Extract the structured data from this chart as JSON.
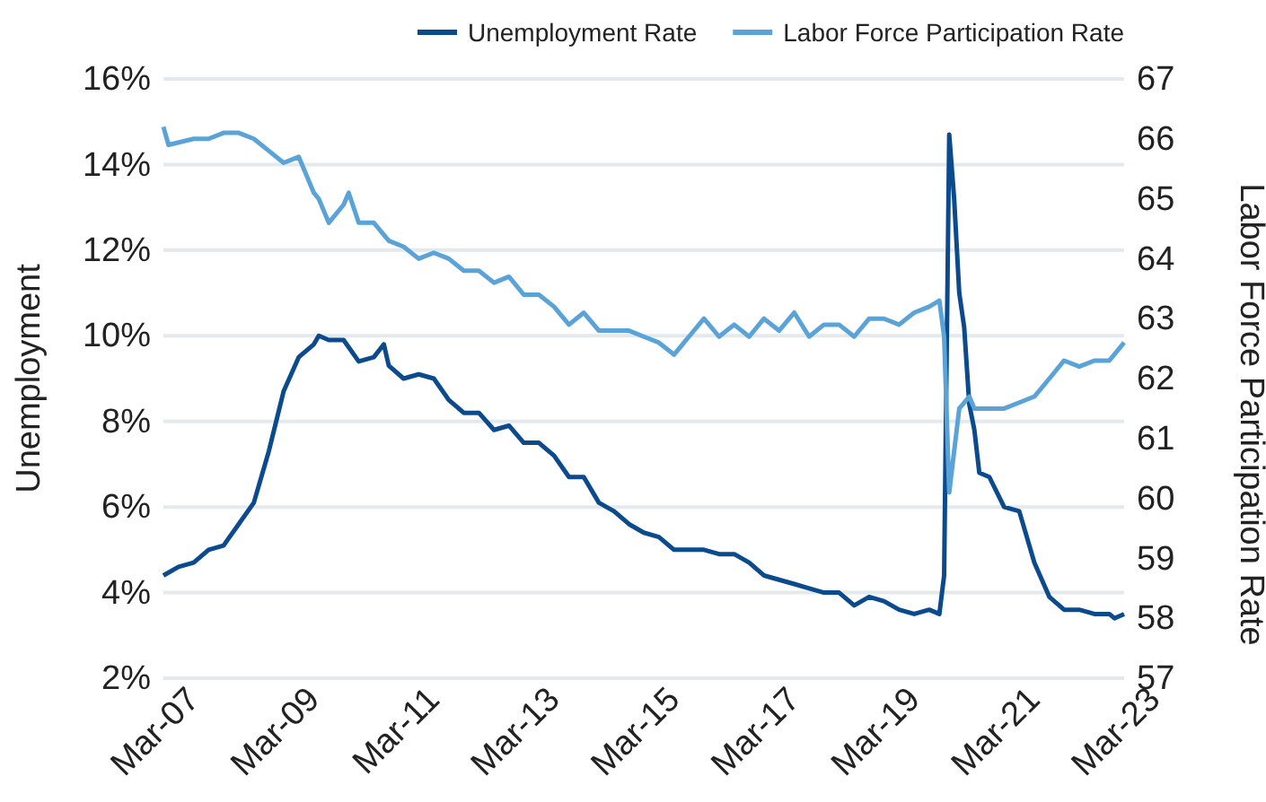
{
  "chart_data": {
    "type": "line",
    "ylabel": "Unemployment",
    "y2label": "Labor Force Participation Rate",
    "xlim": [
      "2007-03",
      "2023-03"
    ],
    "xticks": [
      {
        "value": "2007-03",
        "label": "Mar-07"
      },
      {
        "value": "2009-03",
        "label": "Mar-09"
      },
      {
        "value": "2011-03",
        "label": "Mar-11"
      },
      {
        "value": "2013-03",
        "label": "Mar-13"
      },
      {
        "value": "2015-03",
        "label": "Mar-15"
      },
      {
        "value": "2017-03",
        "label": "Mar-17"
      },
      {
        "value": "2019-03",
        "label": "Mar-19"
      },
      {
        "value": "2021-03",
        "label": "Mar-21"
      },
      {
        "value": "2023-03",
        "label": "Mar-23"
      }
    ],
    "ylim": [
      2,
      16
    ],
    "yticks": [
      {
        "value": 2,
        "label": "2%"
      },
      {
        "value": 4,
        "label": "4%"
      },
      {
        "value": 6,
        "label": "6%"
      },
      {
        "value": 8,
        "label": "8%"
      },
      {
        "value": 10,
        "label": "10%"
      },
      {
        "value": 12,
        "label": "12%"
      },
      {
        "value": 14,
        "label": "14%"
      },
      {
        "value": 16,
        "label": "16%"
      }
    ],
    "y2lim": [
      57,
      67
    ],
    "y2ticks": [
      57,
      58,
      59,
      60,
      61,
      62,
      63,
      64,
      65,
      66,
      67
    ],
    "grid": "y",
    "legend": "top right",
    "marker": "none",
    "line_style": "solid",
    "series": [
      {
        "name": "Unemployment Rate",
        "color": "#0b4a8c",
        "axis": "y",
        "x": [
          "2007-03",
          "2007-06",
          "2007-09",
          "2007-12",
          "2008-03",
          "2008-06",
          "2008-09",
          "2008-12",
          "2009-03",
          "2009-06",
          "2009-09",
          "2009-10",
          "2009-12",
          "2010-03",
          "2010-06",
          "2010-09",
          "2010-11",
          "2010-12",
          "2011-03",
          "2011-06",
          "2011-09",
          "2011-12",
          "2012-03",
          "2012-06",
          "2012-09",
          "2012-12",
          "2013-03",
          "2013-06",
          "2013-09",
          "2013-12",
          "2014-03",
          "2014-06",
          "2014-09",
          "2014-12",
          "2015-03",
          "2015-06",
          "2015-09",
          "2015-12",
          "2016-03",
          "2016-06",
          "2016-09",
          "2016-12",
          "2017-03",
          "2017-06",
          "2017-09",
          "2017-12",
          "2018-03",
          "2018-06",
          "2018-09",
          "2018-12",
          "2019-03",
          "2019-06",
          "2019-09",
          "2019-12",
          "2020-02",
          "2020-03",
          "2020-04",
          "2020-05",
          "2020-06",
          "2020-07",
          "2020-08",
          "2020-09",
          "2020-10",
          "2020-12",
          "2021-03",
          "2021-06",
          "2021-09",
          "2021-12",
          "2022-03",
          "2022-06",
          "2022-09",
          "2022-12",
          "2023-01",
          "2023-03"
        ],
        "values": [
          4.4,
          4.6,
          4.7,
          5.0,
          5.1,
          5.6,
          6.1,
          7.3,
          8.7,
          9.5,
          9.8,
          10.0,
          9.9,
          9.9,
          9.4,
          9.5,
          9.8,
          9.3,
          9.0,
          9.1,
          9.0,
          8.5,
          8.2,
          8.2,
          7.8,
          7.9,
          7.5,
          7.5,
          7.2,
          6.7,
          6.7,
          6.1,
          5.9,
          5.6,
          5.4,
          5.3,
          5.0,
          5.0,
          5.0,
          4.9,
          4.9,
          4.7,
          4.4,
          4.3,
          4.2,
          4.1,
          4.0,
          4.0,
          3.7,
          3.9,
          3.8,
          3.6,
          3.5,
          3.6,
          3.5,
          4.4,
          14.7,
          13.2,
          11.0,
          10.2,
          8.4,
          7.8,
          6.8,
          6.7,
          6.0,
          5.9,
          4.7,
          3.9,
          3.6,
          3.6,
          3.5,
          3.5,
          3.4,
          3.5
        ]
      },
      {
        "name": "Labor Force Participation Rate",
        "color": "#5aa3d8",
        "axis": "y2",
        "x": [
          "2007-03",
          "2007-04",
          "2007-09",
          "2007-12",
          "2008-03",
          "2008-06",
          "2008-09",
          "2008-12",
          "2009-03",
          "2009-06",
          "2009-09",
          "2009-10",
          "2009-12",
          "2010-03",
          "2010-04",
          "2010-06",
          "2010-09",
          "2010-12",
          "2011-03",
          "2011-06",
          "2011-09",
          "2011-12",
          "2012-03",
          "2012-06",
          "2012-09",
          "2012-12",
          "2013-03",
          "2013-06",
          "2013-09",
          "2013-12",
          "2014-03",
          "2014-06",
          "2014-09",
          "2014-12",
          "2015-03",
          "2015-06",
          "2015-09",
          "2015-12",
          "2016-03",
          "2016-06",
          "2016-09",
          "2016-12",
          "2017-03",
          "2017-06",
          "2017-09",
          "2017-12",
          "2018-03",
          "2018-06",
          "2018-09",
          "2018-12",
          "2019-03",
          "2019-06",
          "2019-09",
          "2019-12",
          "2020-02",
          "2020-03",
          "2020-04",
          "2020-06",
          "2020-08",
          "2020-09",
          "2020-12",
          "2021-03",
          "2021-06",
          "2021-09",
          "2021-12",
          "2022-03",
          "2022-06",
          "2022-09",
          "2022-12",
          "2023-03"
        ],
        "values": [
          66.2,
          65.9,
          66.0,
          66.0,
          66.1,
          66.1,
          66.0,
          65.8,
          65.6,
          65.7,
          65.1,
          65.0,
          64.6,
          64.9,
          65.1,
          64.6,
          64.6,
          64.3,
          64.2,
          64.0,
          64.1,
          64.0,
          63.8,
          63.8,
          63.6,
          63.7,
          63.4,
          63.4,
          63.2,
          62.9,
          63.1,
          62.8,
          62.8,
          62.8,
          62.7,
          62.6,
          62.4,
          62.7,
          63.0,
          62.7,
          62.9,
          62.7,
          63.0,
          62.8,
          63.1,
          62.7,
          62.9,
          62.9,
          62.7,
          63.0,
          63.0,
          62.9,
          63.1,
          63.2,
          63.3,
          62.7,
          60.1,
          61.5,
          61.7,
          61.5,
          61.5,
          61.5,
          61.6,
          61.7,
          62.0,
          62.3,
          62.2,
          62.3,
          62.3,
          62.6
        ]
      }
    ]
  }
}
